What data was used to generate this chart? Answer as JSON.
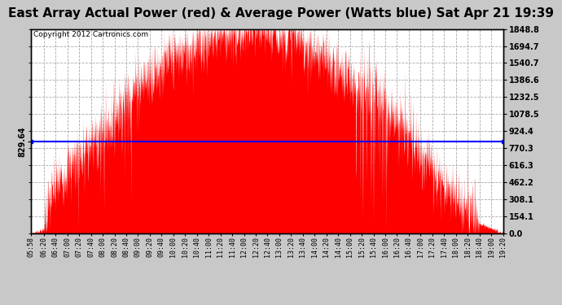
{
  "title": "East Array Actual Power (red) & Average Power (Watts blue) Sat Apr 21 19:39",
  "copyright": "Copyright 2012 Cartronics.com",
  "avg_power": 829.64,
  "ymax": 1848.8,
  "ymin": 0.0,
  "yticks": [
    0.0,
    154.1,
    308.1,
    462.2,
    616.3,
    770.3,
    924.4,
    1078.5,
    1232.5,
    1386.6,
    1540.7,
    1694.7,
    1848.8
  ],
  "bg_color": "#c8c8c8",
  "plot_bg_color": "#ffffff",
  "fill_color": "#ff0000",
  "line_color": "#0000ff",
  "grid_color": "#aaaaaa",
  "title_fontsize": 11,
  "time_labels": [
    "05:58",
    "06:20",
    "06:40",
    "07:00",
    "07:20",
    "07:40",
    "08:00",
    "08:20",
    "08:40",
    "09:00",
    "09:20",
    "09:40",
    "10:00",
    "10:20",
    "10:40",
    "11:00",
    "11:20",
    "11:40",
    "12:00",
    "12:20",
    "12:40",
    "13:00",
    "13:20",
    "13:40",
    "14:00",
    "14:20",
    "14:40",
    "15:00",
    "15:20",
    "15:40",
    "16:00",
    "16:20",
    "16:40",
    "17:00",
    "17:20",
    "17:40",
    "18:00",
    "18:20",
    "18:40",
    "19:00",
    "19:20"
  ]
}
